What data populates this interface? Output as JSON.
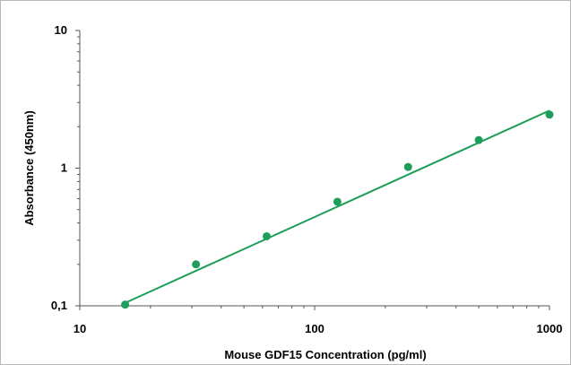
{
  "chart_data": {
    "type": "scatter",
    "title": "",
    "xlabel": "Mouse GDF15 Concentration (pg/ml)",
    "ylabel": "Absorbance (450nm)",
    "x_scale": "log",
    "y_scale": "log",
    "xlim": [
      10,
      1000
    ],
    "ylim": [
      0.1,
      10
    ],
    "x_ticks": [
      {
        "value": 10,
        "label": "10"
      },
      {
        "value": 100,
        "label": "100"
      },
      {
        "value": 1000,
        "label": "1000"
      }
    ],
    "y_ticks": [
      {
        "value": 0.1,
        "label": "0,1"
      },
      {
        "value": 1,
        "label": "1"
      },
      {
        "value": 10,
        "label": "10"
      }
    ],
    "grid": false,
    "legend": "none",
    "color": "#1e9e5a",
    "points": [
      {
        "x": 15.6,
        "y": 0.102
      },
      {
        "x": 31.25,
        "y": 0.2
      },
      {
        "x": 62.5,
        "y": 0.32
      },
      {
        "x": 125,
        "y": 0.57
      },
      {
        "x": 250,
        "y": 1.02
      },
      {
        "x": 500,
        "y": 1.6
      },
      {
        "x": 1000,
        "y": 2.45
      }
    ],
    "fit_line": {
      "x": [
        15.6,
        1000
      ],
      "y": [
        0.105,
        2.62
      ]
    }
  }
}
